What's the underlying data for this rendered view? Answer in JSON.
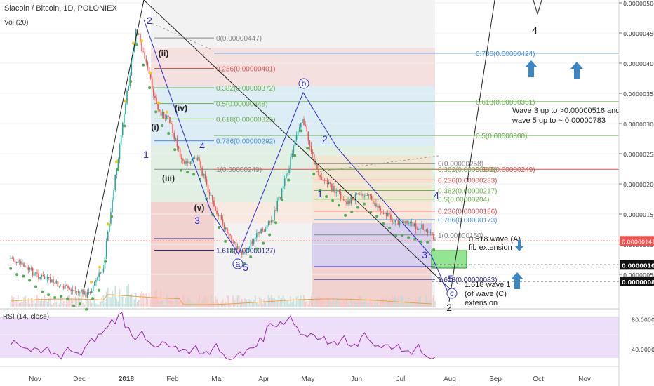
{
  "chart_data": {
    "type": "candlestick",
    "title": "Siacoin / Bitcoin, 1D, POLONIEX",
    "volume_label": "Vol (20)",
    "price_axis": {
      "ylim": [
        4.5e-07,
        5e-06
      ],
      "ticks": [
        "0.00000500",
        "0.00000450",
        "0.00000400",
        "0.00000350",
        "0.00000300",
        "0.00000250",
        "0.00000200",
        "0.00000150",
        "0.00000100",
        "0.00000050"
      ],
      "current_price": "0.00000141",
      "markers": [
        "0.00000105",
        "0.00000080"
      ]
    },
    "time_axis": {
      "labels": [
        "Nov",
        "Dec",
        "2018",
        "Feb",
        "Mar",
        "Apr",
        "May",
        "Jun",
        "Jul",
        "Aug",
        "Sep",
        "Oct",
        "Nov"
      ]
    },
    "price_path": [
      {
        "t": "2017-10-15",
        "p": 1.15e-06
      },
      {
        "t": "2017-11-01",
        "p": 9e-07
      },
      {
        "t": "2017-11-20",
        "p": 7e-07
      },
      {
        "t": "2017-12-05",
        "p": 6e-07
      },
      {
        "t": "2017-12-15",
        "p": 1e-06
      },
      {
        "t": "2017-12-22",
        "p": 2.2e-06
      },
      {
        "t": "2017-12-28",
        "p": 3.2e-06
      },
      {
        "t": "2018-01-06",
        "p": 4.62e-06
      },
      {
        "t": "2018-01-12",
        "p": 4.1e-06
      },
      {
        "t": "2018-01-20",
        "p": 3.4e-06
      },
      {
        "t": "2018-01-28",
        "p": 3.2e-06
      },
      {
        "t": "2018-02-05",
        "p": 2.6e-06
      },
      {
        "t": "2018-02-15",
        "p": 2.65e-06
      },
      {
        "t": "2018-02-25",
        "p": 2e-06
      },
      {
        "t": "2018-03-05",
        "p": 1.6e-06
      },
      {
        "t": "2018-03-16",
        "p": 1.2e-06
      },
      {
        "t": "2018-03-25",
        "p": 1.45e-06
      },
      {
        "t": "2018-04-05",
        "p": 1.7e-06
      },
      {
        "t": "2018-04-15",
        "p": 2.4e-06
      },
      {
        "t": "2018-04-25",
        "p": 3.3e-06
      },
      {
        "t": "2018-05-05",
        "p": 2.45e-06
      },
      {
        "t": "2018-05-15",
        "p": 2.2e-06
      },
      {
        "t": "2018-05-25",
        "p": 2e-06
      },
      {
        "t": "2018-06-05",
        "p": 2.15e-06
      },
      {
        "t": "2018-06-15",
        "p": 1.9e-06
      },
      {
        "t": "2018-06-25",
        "p": 1.7e-06
      },
      {
        "t": "2018-07-05",
        "p": 1.65e-06
      },
      {
        "t": "2018-07-15",
        "p": 1.6e-06
      },
      {
        "t": "2018-07-22",
        "p": 1.41e-06
      }
    ],
    "fib_sets": [
      {
        "levels": [
          {
            "label": "0(0.00000447)",
            "value": 4.47e-06
          },
          {
            "label": "0.236(0.00000401)",
            "value": 4.01e-06
          },
          {
            "label": "0.382(0.00000372)",
            "value": 3.72e-06
          },
          {
            "label": "0.5(0.00000348)",
            "value": 3.48e-06
          },
          {
            "label": "0.618(0.00000325)",
            "value": 3.25e-06
          },
          {
            "label": "0.786(0.00000292)",
            "value": 2.92e-06
          },
          {
            "label": "1(0.00000249)",
            "value": 2.49e-06
          },
          {
            "label": "1.618(0.00000127)",
            "value": 1.27e-06
          }
        ]
      },
      {
        "levels": [
          {
            "label": "0.786(0.00000424)",
            "value": 4.24e-06
          },
          {
            "label": "0.618(0.00000351)",
            "value": 3.51e-06
          },
          {
            "label": "0.5(0.00000300)",
            "value": 3e-06
          },
          {
            "label": "0.382(0.00000249)",
            "value": 2.49e-06
          }
        ]
      },
      {
        "levels": [
          {
            "label": "0(0.00000258)",
            "value": 2.58e-06
          },
          {
            "label": "0.382(0.00000249)",
            "value": 2.49e-06
          },
          {
            "label": "0.236(0.00000233)",
            "value": 2.33e-06
          },
          {
            "label": "0.382(0.00000217)",
            "value": 2.17e-06
          },
          {
            "label": "0.5(0.00000204)",
            "value": 2.04e-06
          },
          {
            "label": "0.236(0.00000186)",
            "value": 1.86e-06
          },
          {
            "label": "0.786(0.00000173)",
            "value": 1.73e-06
          },
          {
            "label": "1(0.00000150)",
            "value": 1.5e-06
          },
          {
            "label": "1.618(0.00000083)",
            "value": 8.3e-07
          }
        ]
      }
    ],
    "wave_labels": [
      "2",
      "(ii)",
      "(iv)",
      "(i)",
      "1",
      "4",
      "(iii)",
      "(v)",
      "3",
      "a",
      "5",
      "b",
      "2",
      "1",
      "4",
      "3",
      "5",
      "c",
      "2",
      "4"
    ],
    "annotations": [
      "Wave 3 up to >0.00000516 and",
      "wave 5 up to ~ 0.00000783",
      "0.618 wave (A)",
      "fib extension",
      "1.618 wave 1",
      "(of wave (C)",
      "extension"
    ],
    "rsi": {
      "label": "RSI (14, close)",
      "ylim": [
        20,
        90
      ],
      "ticks": [
        "80.0000",
        "40.0000"
      ],
      "band": [
        30,
        70
      ],
      "values": [
        45,
        43,
        42,
        40,
        38,
        36,
        35,
        34,
        33,
        35,
        38,
        42,
        50,
        60,
        70,
        78,
        82,
        70,
        60,
        55,
        50,
        48,
        45,
        44,
        42,
        40,
        38,
        36,
        35,
        40,
        38,
        34,
        30,
        28,
        32,
        38,
        45,
        55,
        65,
        72,
        80,
        76,
        70,
        62,
        58,
        55,
        52,
        50,
        50,
        48,
        46,
        50,
        54,
        50,
        46,
        44,
        42,
        40,
        40,
        38,
        36,
        34,
        32,
        28
      ]
    }
  }
}
